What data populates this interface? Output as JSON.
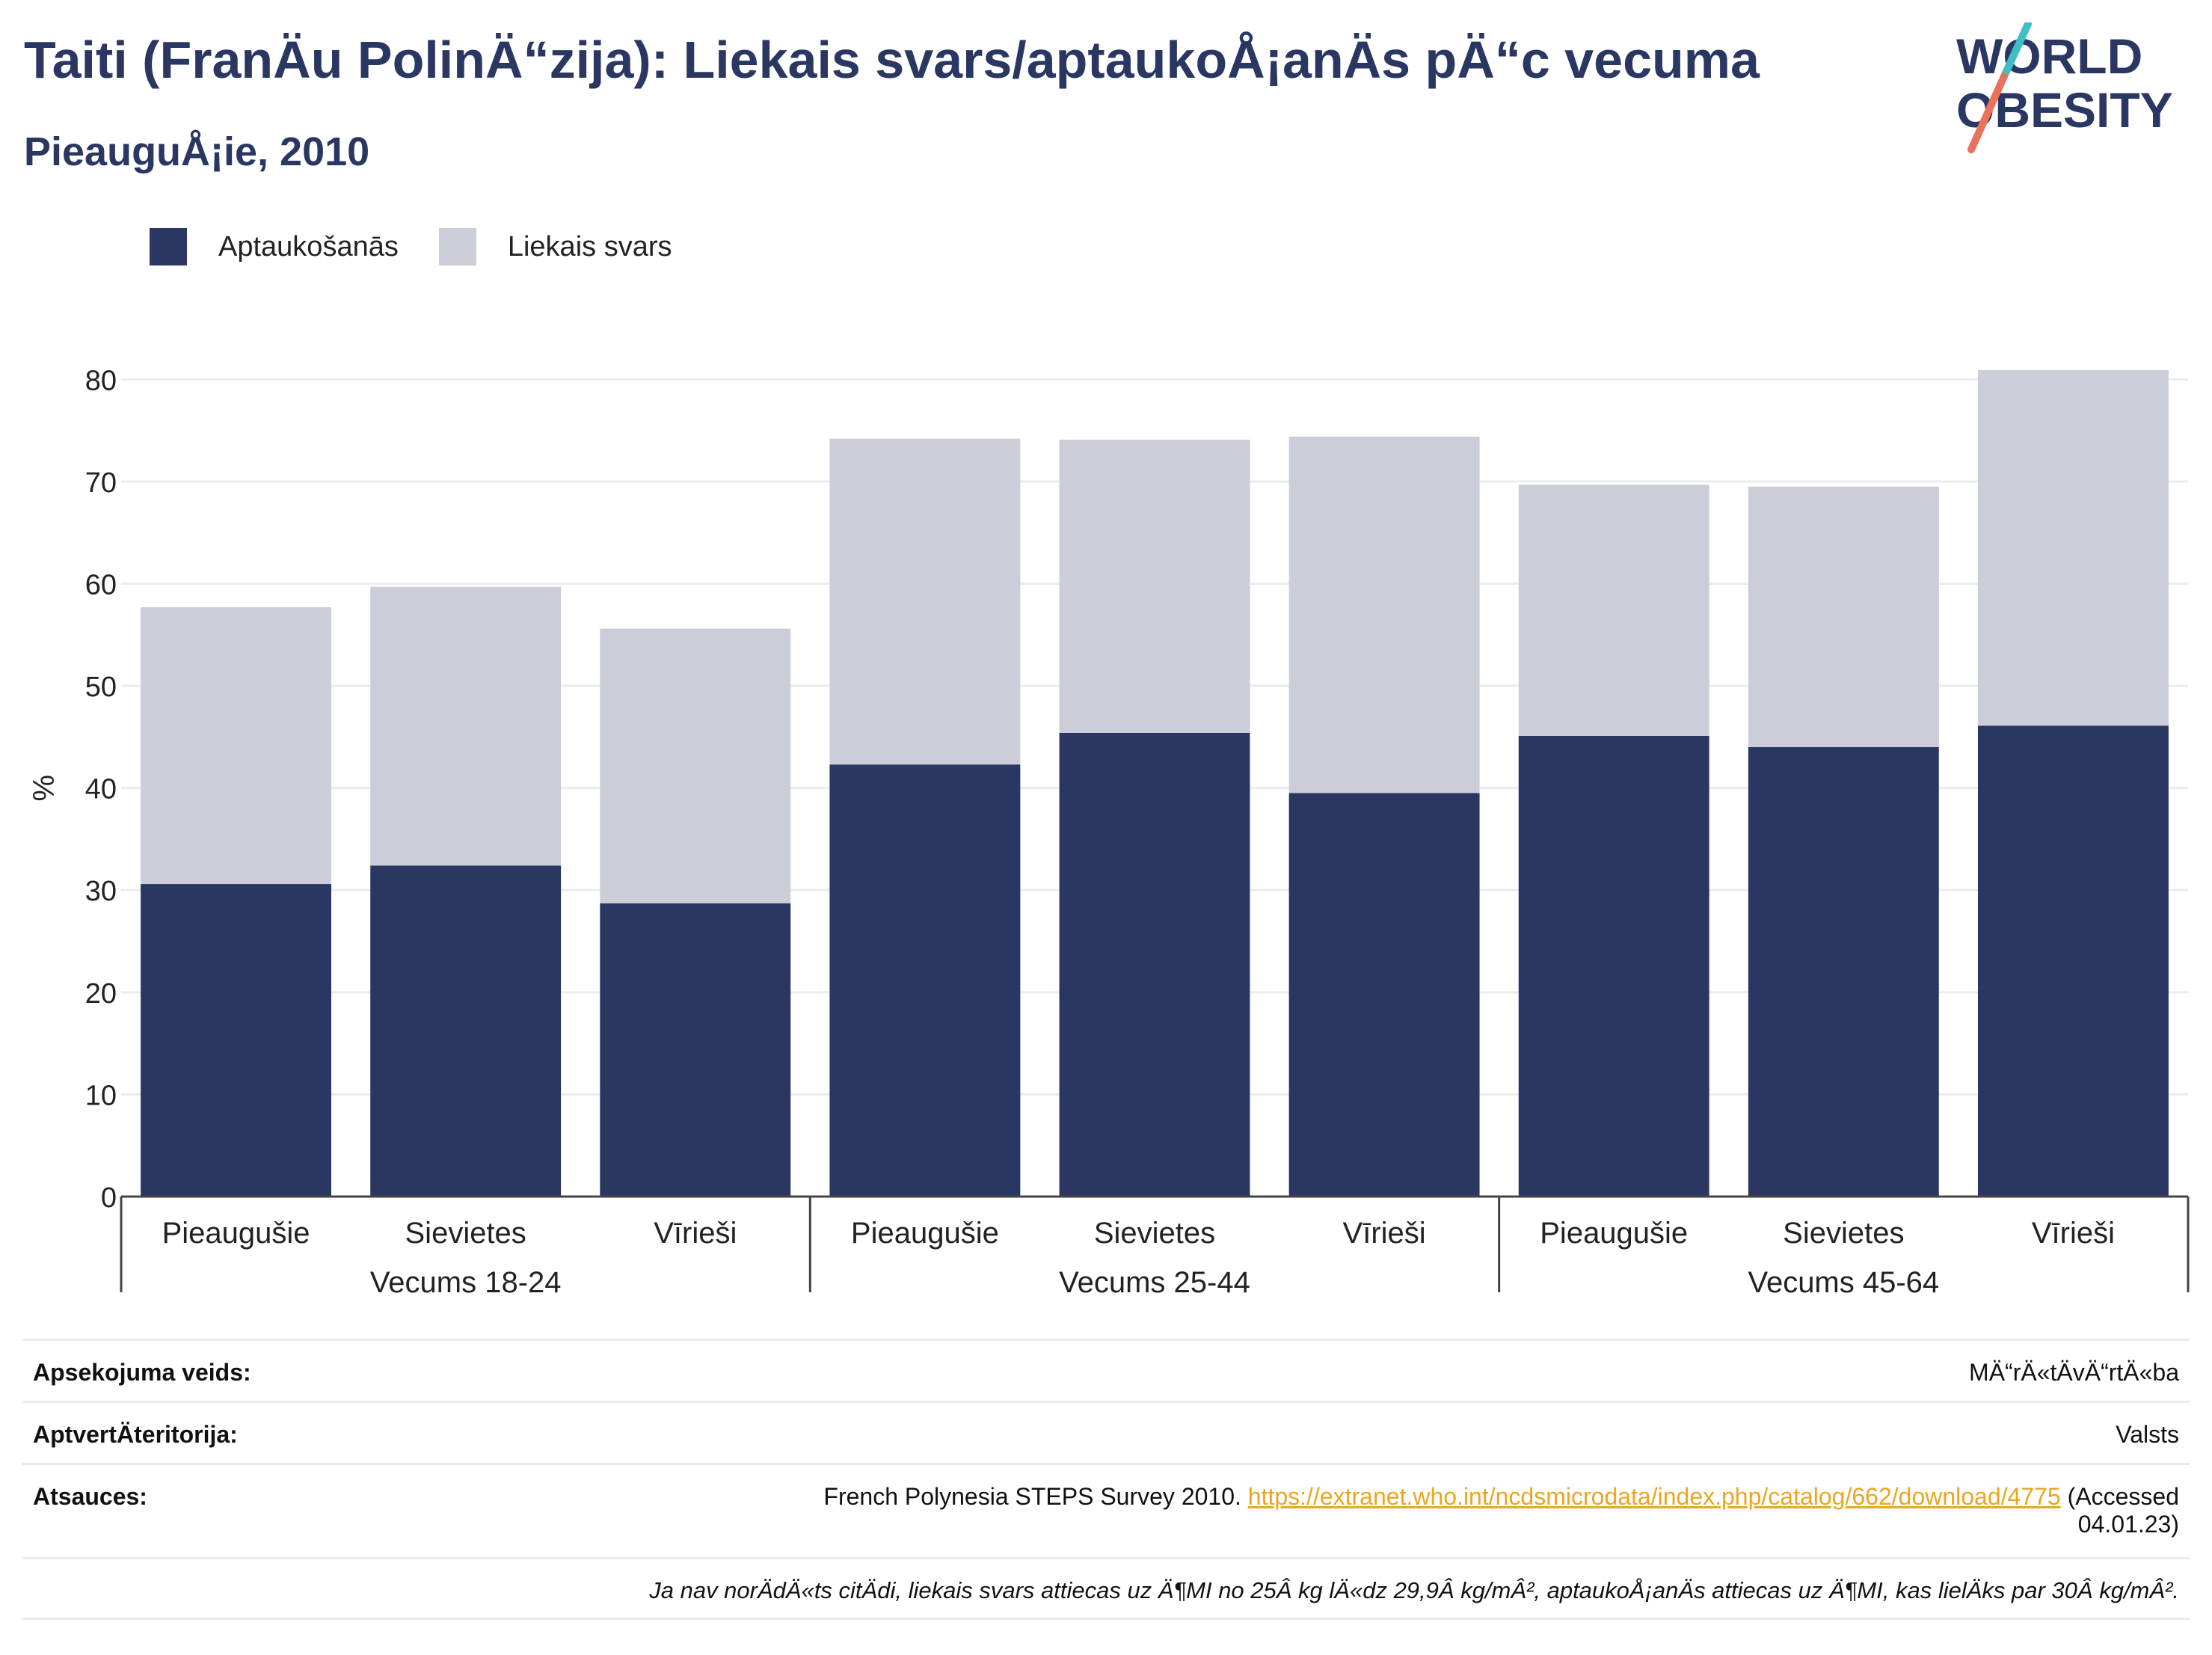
{
  "header": {
    "title": "Taiti (FranÄu PolinÄ“zija): Liekais svars/aptaukoÅ¡anÄs pÄ“c vecuma",
    "subtitle": "PieauguÅ¡ie, 2010"
  },
  "logo": {
    "line1": "WORLD",
    "line2": "OBESITY"
  },
  "colors": {
    "obesity": "#2a3763",
    "overweight": "#cbcdd8",
    "accent_teal": "#3fbfc4",
    "accent_orange": "#e8735a"
  },
  "legend": [
    {
      "label": "Aptaukošanās",
      "color": "#2a3763"
    },
    {
      "label": "Liekais svars",
      "color": "#cbcdd8"
    }
  ],
  "chart_data": {
    "type": "bar",
    "stacked": true,
    "ylabel": "%",
    "ylim": [
      0,
      80
    ],
    "yticks": [
      0,
      10,
      20,
      30,
      40,
      50,
      60,
      70,
      80
    ],
    "grid": true,
    "legend_position": "top-left",
    "groups": [
      {
        "label": "Vecums 18-24",
        "categories": [
          "Pieaugušie",
          "Sievietes",
          "Vīrieši"
        ]
      },
      {
        "label": "Vecums 25-44",
        "categories": [
          "Pieaugušie",
          "Sievietes",
          "Vīrieši"
        ]
      },
      {
        "label": "Vecums 45-64",
        "categories": [
          "Pieaugušie",
          "Sievietes",
          "Vīrieši"
        ]
      }
    ],
    "categories": [
      "Pieaugušie",
      "Sievietes",
      "Vīrieši",
      "Pieaugušie",
      "Sievietes",
      "Vīrieši",
      "Pieaugušie",
      "Sievietes",
      "Vīrieši"
    ],
    "series": [
      {
        "name": "Aptaukošanās",
        "values": [
          30.6,
          32.4,
          28.7,
          42.3,
          45.4,
          39.5,
          45.1,
          44.0,
          46.1
        ]
      },
      {
        "name": "Liekais svars",
        "values": [
          27.1,
          27.3,
          26.9,
          31.9,
          28.7,
          34.9,
          24.6,
          25.5,
          34.8
        ]
      }
    ]
  },
  "info": {
    "survey_type_label": "Apsekojuma veids:",
    "survey_type_value": "MÄ“rÄ«tÄvÄ“rtÄ«ba",
    "coverage_label": "AptvertÄteritorija:",
    "coverage_value": "Valsts",
    "refs_label": "Atsauces:",
    "refs_text": "French Polynesia STEPS Survey 2010.",
    "refs_link": "https://extranet.who.int/ncdsmicrodata/index.php/catalog/662/download/4775",
    "refs_accessed_1": "(Accessed",
    "refs_accessed_2": "04.01.23)",
    "note": "Ja nav norÄdÄ«ts citÄdi, liekais svars attiecas uz Ä¶MI no 25Â kg lÄ«dz 29,9Â kg/mÂ², aptaukoÅ¡anÄs attiecas uz Ä¶MI, kas lielÄks par 30Â kg/mÂ²."
  }
}
